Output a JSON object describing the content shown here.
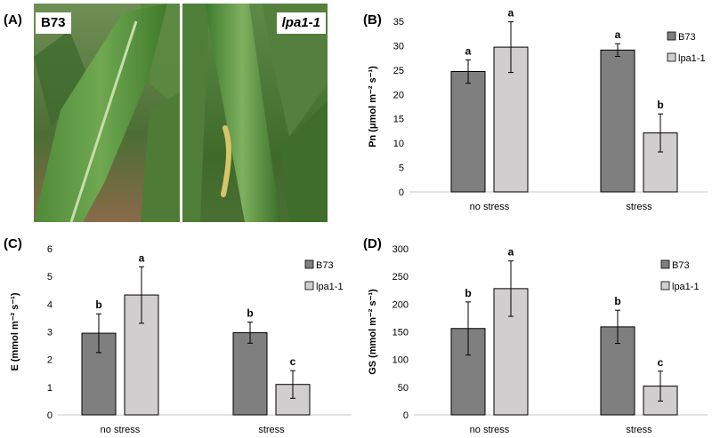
{
  "panels": {
    "a_label": "(A)",
    "b_label": "(B)",
    "c_label": "(C)",
    "d_label": "(D)"
  },
  "photos": {
    "left_label": "B73",
    "right_label": "lpa1-1"
  },
  "chart_data": [
    {
      "id": "B",
      "type": "bar",
      "categories": [
        "no stress",
        "stress"
      ],
      "ylabel": "Pn (μmol m⁻² s⁻¹)",
      "ylim": [
        0,
        35
      ],
      "yticks": [
        0,
        5,
        10,
        15,
        20,
        25,
        30,
        35
      ],
      "legend_position": "right",
      "grid": false,
      "series": [
        {
          "name": "B73",
          "color": "#7f7f7f",
          "values": [
            24.7,
            29.1
          ],
          "errors": [
            2.4,
            1.3
          ],
          "letters": [
            "a",
            "a"
          ]
        },
        {
          "name": "lpa1-1",
          "color": "#d0cece",
          "values": [
            29.7,
            12.1
          ],
          "errors": [
            5.2,
            3.9
          ],
          "letters": [
            "a",
            "b"
          ]
        }
      ]
    },
    {
      "id": "C",
      "type": "bar",
      "categories": [
        "no stress",
        "stress"
      ],
      "ylabel": "E (mmol m⁻² s⁻¹)",
      "ylim": [
        0,
        6
      ],
      "yticks": [
        0,
        1,
        2,
        3,
        4,
        5,
        6
      ],
      "legend_position": "right",
      "grid": false,
      "series": [
        {
          "name": "B73",
          "color": "#7f7f7f",
          "values": [
            2.95,
            2.97
          ],
          "errors": [
            0.7,
            0.38
          ],
          "letters": [
            "b",
            "b"
          ]
        },
        {
          "name": "lpa1-1",
          "color": "#d0cece",
          "values": [
            4.33,
            1.1
          ],
          "errors": [
            1.02,
            0.5
          ],
          "letters": [
            "a",
            "c"
          ]
        }
      ]
    },
    {
      "id": "D",
      "type": "bar",
      "categories": [
        "no stress",
        "stress"
      ],
      "ylabel": "GS (mmol m⁻² s⁻¹)",
      "ylim": [
        0,
        300
      ],
      "yticks": [
        0,
        50,
        100,
        150,
        200,
        250,
        300
      ],
      "legend_position": "right",
      "grid": false,
      "series": [
        {
          "name": "B73",
          "color": "#7f7f7f",
          "values": [
            156,
            159
          ],
          "errors": [
            48,
            30
          ],
          "letters": [
            "b",
            "b"
          ]
        },
        {
          "name": "lpa1-1",
          "color": "#d0cece",
          "values": [
            228,
            52
          ],
          "errors": [
            50,
            27
          ],
          "letters": [
            "a",
            "c"
          ]
        }
      ]
    }
  ]
}
